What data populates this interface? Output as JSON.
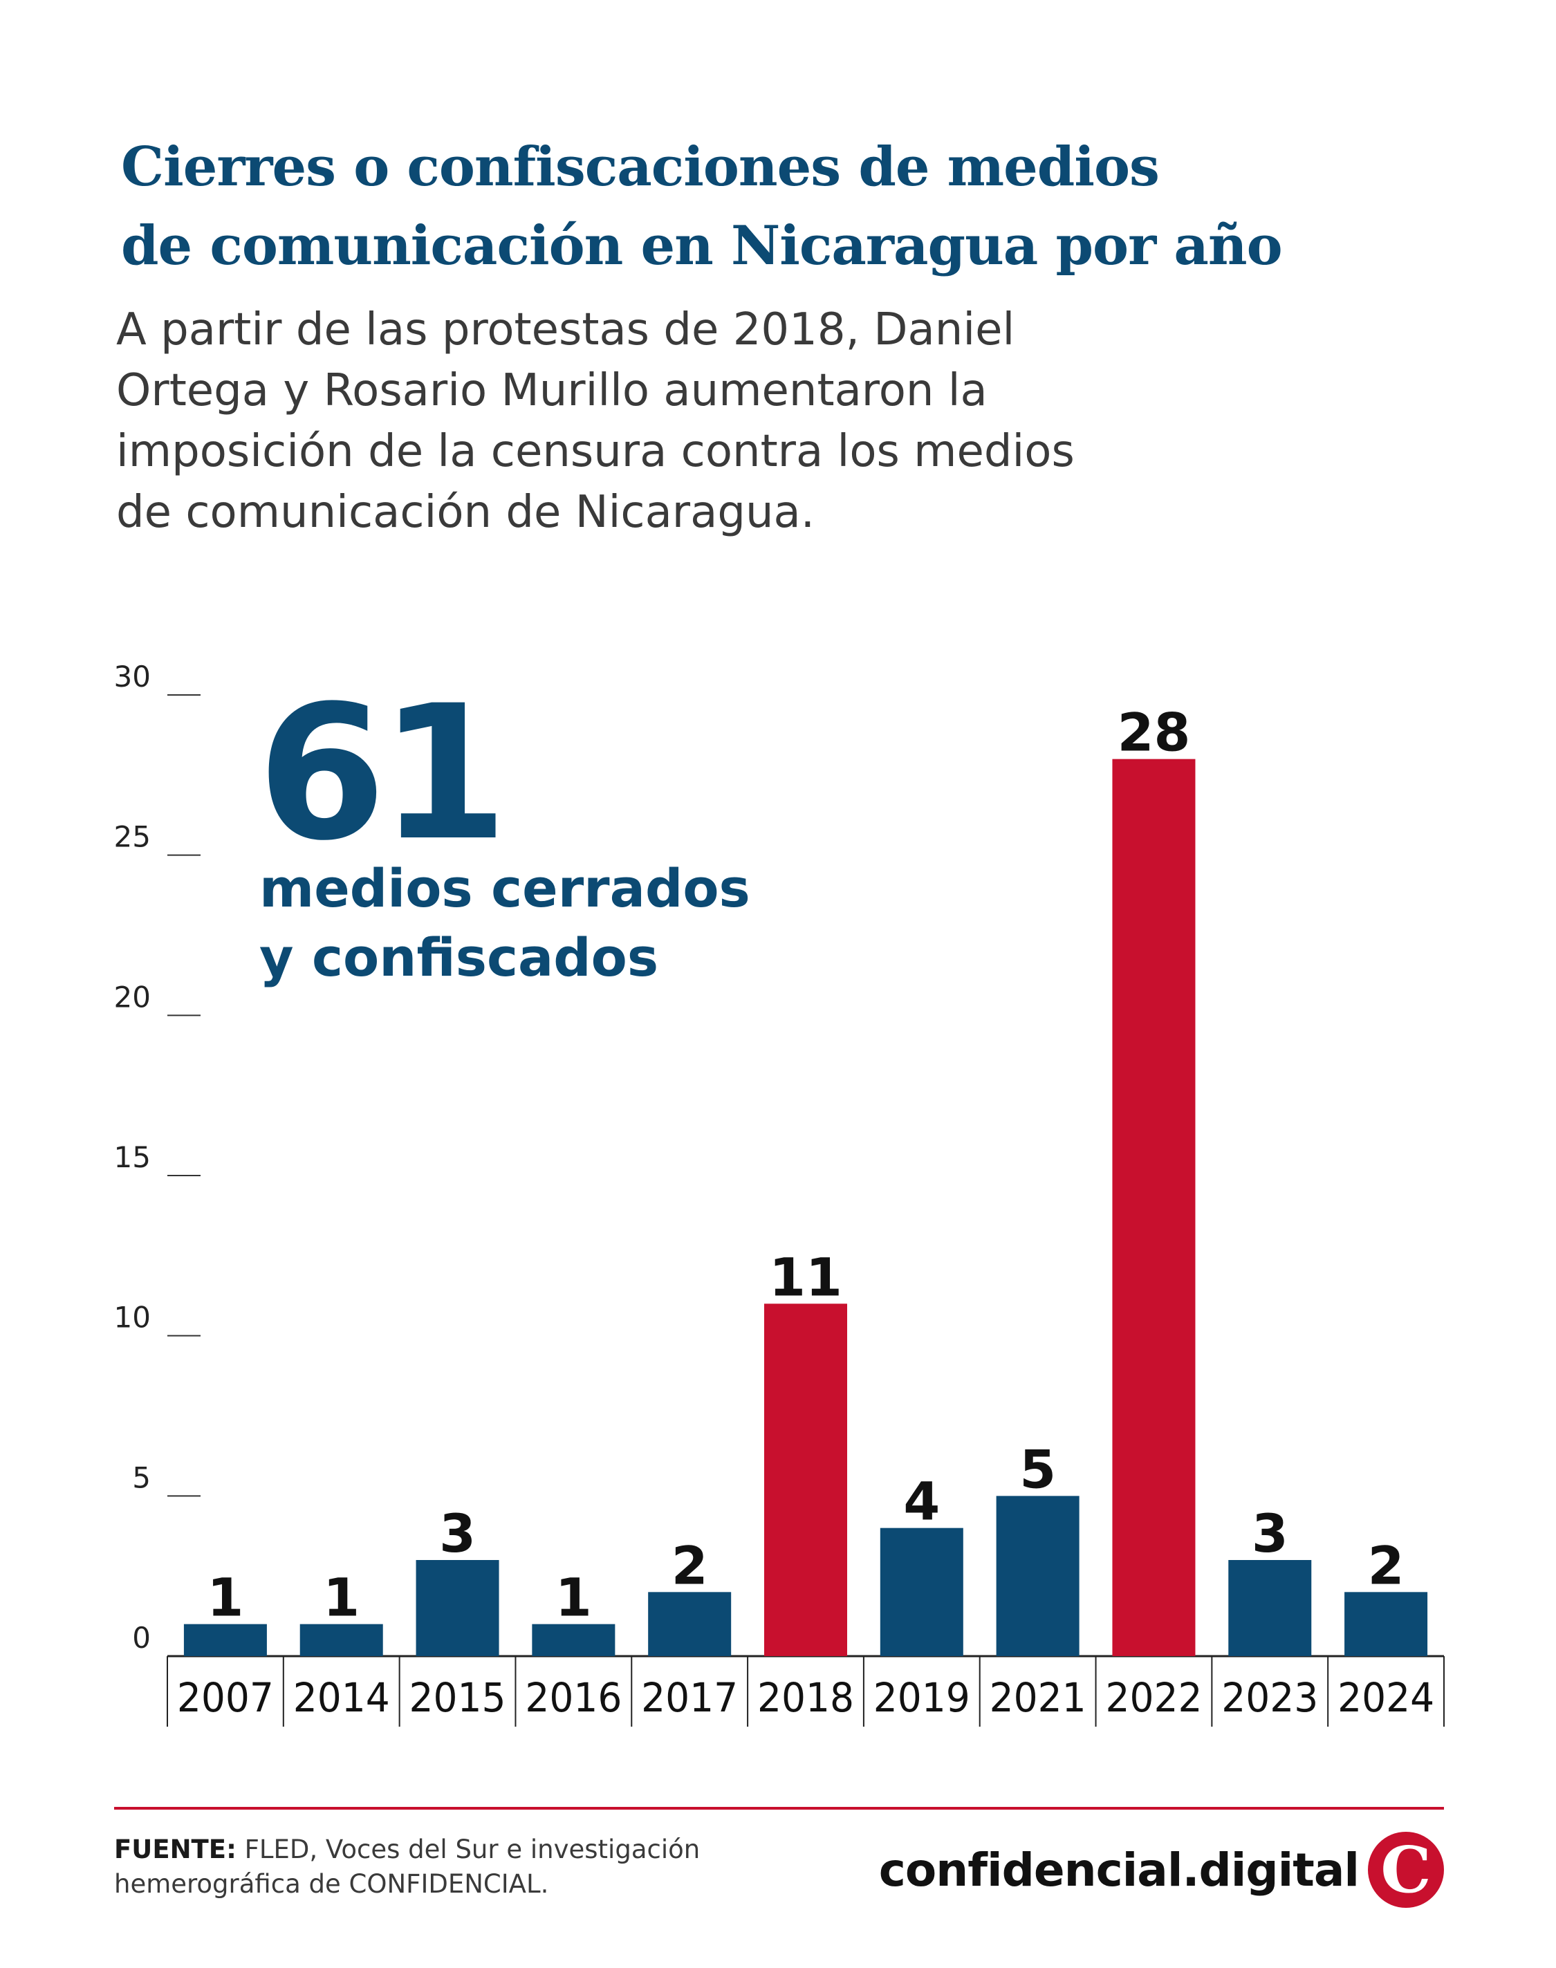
{
  "title_lines": [
    "Cierres o confiscaciones de medios",
    "de comunicación en Nicaragua por año"
  ],
  "subtitle_lines": [
    "A partir de las protestas de 2018, Daniel",
    "Ortega y Rosario Murillo aumentaron la",
    "imposición de la censura contra los medios",
    "de comunicación de Nicaragua."
  ],
  "highlight": {
    "number": "61",
    "caption_lines": [
      "medios cerrados",
      "y confiscados"
    ]
  },
  "colors": {
    "primary": "#0c4a73",
    "accent": "#c8102e",
    "text": "#3a3a3a"
  },
  "chart_data": {
    "type": "bar",
    "title": "Cierres o confiscaciones de medios de comunicación en Nicaragua por año",
    "xlabel": "",
    "ylabel": "",
    "ylim": [
      0,
      30
    ],
    "yticks": [
      0,
      5,
      10,
      15,
      20,
      25,
      30
    ],
    "grid": false,
    "categories": [
      "2007",
      "2014",
      "2015",
      "2016",
      "2017",
      "2018",
      "2019",
      "2021",
      "2022",
      "2023",
      "2024"
    ],
    "values": [
      1,
      1,
      3,
      1,
      2,
      11,
      4,
      5,
      28,
      3,
      2
    ],
    "highlighted": [
      false,
      false,
      false,
      false,
      false,
      true,
      false,
      false,
      true,
      false,
      false
    ]
  },
  "source": {
    "label": "FUENTE:",
    "text_lines": [
      "FLED, Voces del Sur e investigación",
      "hemerográfica de CONFIDENCIAL."
    ]
  },
  "brand": {
    "name": "confidencial.digital",
    "logo_letter": "C"
  }
}
